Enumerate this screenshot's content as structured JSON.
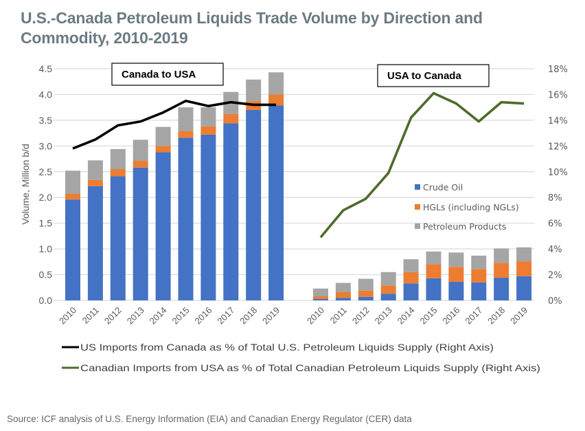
{
  "title": "U.S.-Canada Petroleum Liquids Trade Volume by Direction and Commodity, 2010-2019",
  "source": "Source: ICF analysis of U.S. Energy Information (EIA) and Canadian Energy Regulator (CER) data",
  "chart_data": {
    "type": "bar",
    "subtype": "stacked-bar-with-line-overlay",
    "title": "U.S.-Canada Petroleum Liquids Trade Volume by Direction and Commodity, 2010-2019",
    "ylabel": "Volume, Million b/d",
    "ylim": [
      0,
      4.5
    ],
    "yticks": [
      "0.0",
      "0.5",
      "1.0",
      "1.5",
      "2.0",
      "2.5",
      "3.0",
      "3.5",
      "4.0",
      "4.5"
    ],
    "y2lim": [
      0,
      18
    ],
    "y2ticks": [
      "0%",
      "2%",
      "4%",
      "6%",
      "8%",
      "10%",
      "12%",
      "14%",
      "16%",
      "18%"
    ],
    "grid": true,
    "colors": {
      "crude": "#4472c4",
      "hgl": "#ed7d31",
      "products": "#a5a5a5",
      "us_line": "#000000",
      "ca_line": "#4e6b2a"
    },
    "legend": {
      "placement": "center-right",
      "bars": [
        "Crude Oil",
        "HGLs (including NGLs)",
        "Petroleum Products"
      ],
      "lines": [
        "US Imports from Canada as % of Total U.S. Petroleum Liquids Supply (Right Axis)",
        "Canadian Imports from USA as % of Total Canadian Petroleum Liquids Supply (Right Axis)"
      ]
    },
    "panels": [
      {
        "label": "Canada to USA",
        "categories": [
          "2010",
          "2011",
          "2012",
          "2013",
          "2014",
          "2015",
          "2016",
          "2017",
          "2018",
          "2019"
        ],
        "series": [
          {
            "name": "Crude Oil",
            "values": [
              1.96,
              2.22,
              2.41,
              2.58,
              2.88,
              3.16,
              3.22,
              3.44,
              3.7,
              3.79
            ]
          },
          {
            "name": "HGLs (including NGLs)",
            "values": [
              0.11,
              0.12,
              0.14,
              0.13,
              0.12,
              0.13,
              0.16,
              0.18,
              0.17,
              0.21
            ]
          },
          {
            "name": "Petroleum Products",
            "values": [
              0.45,
              0.38,
              0.39,
              0.41,
              0.37,
              0.46,
              0.37,
              0.43,
              0.42,
              0.43
            ]
          }
        ],
        "line": {
          "name": "US Imports from Canada as % of Total U.S. Petroleum Liquids Supply (Right Axis)",
          "values_pct": [
            11.8,
            12.5,
            13.6,
            13.9,
            14.6,
            15.5,
            15.1,
            15.4,
            15.2,
            15.2
          ]
        }
      },
      {
        "label": "USA to Canada",
        "categories": [
          "2010",
          "2011",
          "2012",
          "2013",
          "2014",
          "2015",
          "2016",
          "2017",
          "2018",
          "2019"
        ],
        "series": [
          {
            "name": "Crude Oil",
            "values": [
              0.03,
              0.05,
              0.07,
              0.13,
              0.33,
              0.43,
              0.36,
              0.35,
              0.44,
              0.47
            ]
          },
          {
            "name": "HGLs (including NGLs)",
            "values": [
              0.05,
              0.11,
              0.12,
              0.16,
              0.22,
              0.27,
              0.29,
              0.26,
              0.29,
              0.29
            ]
          },
          {
            "name": "Petroleum Products",
            "values": [
              0.15,
              0.18,
              0.23,
              0.26,
              0.25,
              0.25,
              0.28,
              0.26,
              0.28,
              0.27
            ]
          }
        ],
        "line": {
          "name": "Canadian Imports from USA as % of Total Canadian Petroleum Liquids Supply (Right Axis)",
          "values_pct": [
            4.9,
            7.0,
            7.9,
            9.9,
            14.2,
            16.1,
            15.3,
            13.9,
            15.4,
            15.3
          ]
        }
      }
    ]
  }
}
